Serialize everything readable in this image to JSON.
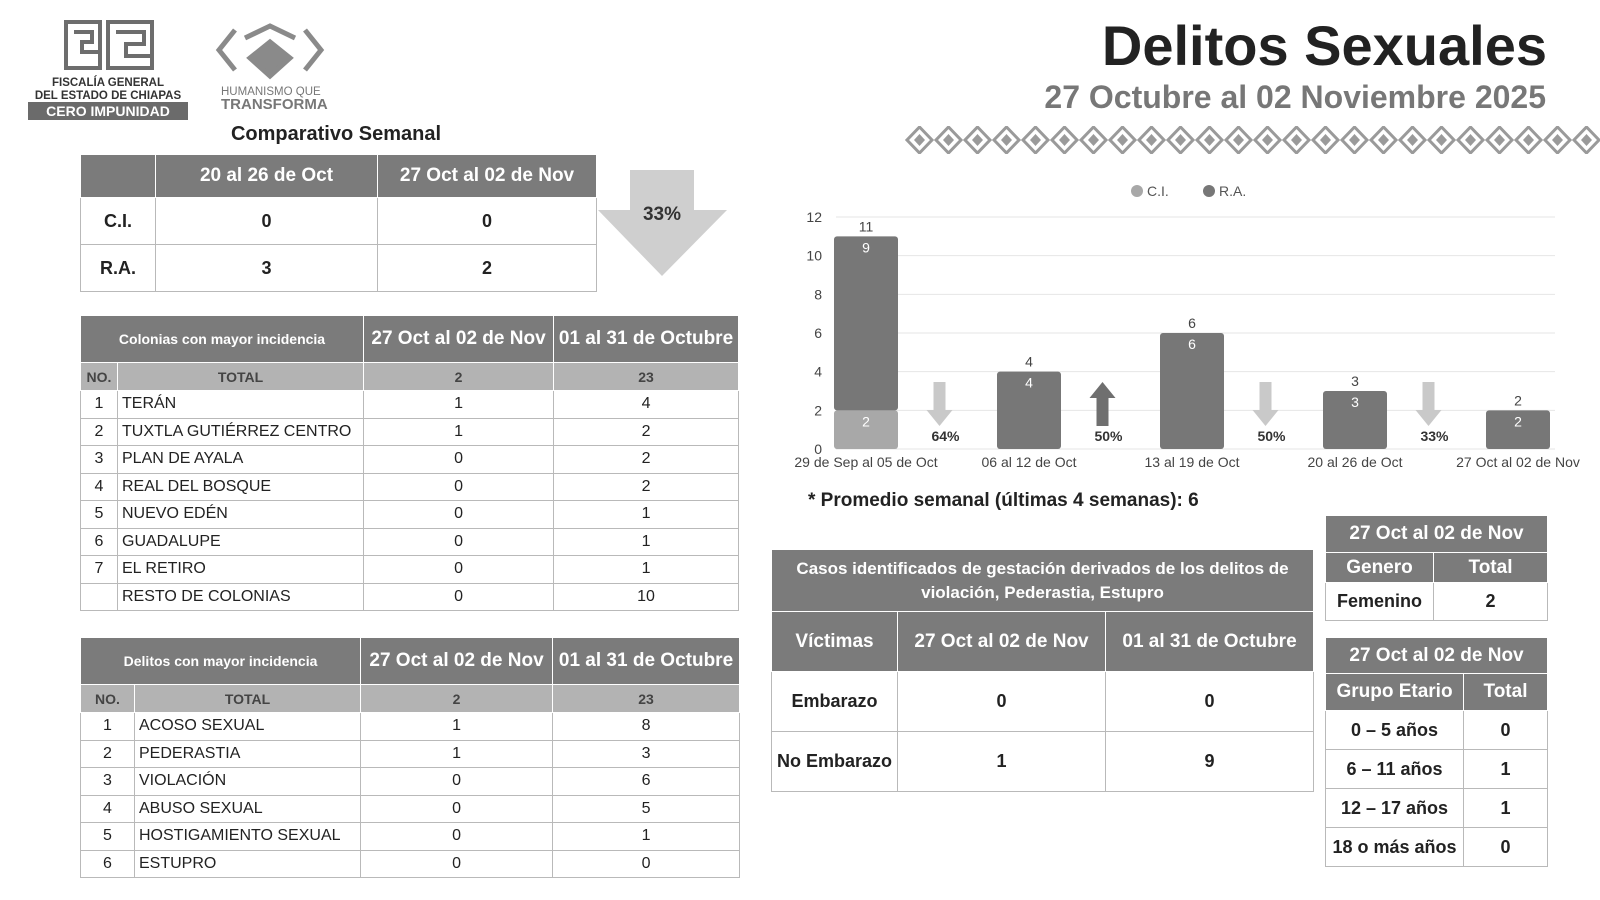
{
  "header": {
    "org_lines": [
      "FISCALÍA GENERAL",
      "DEL ESTADO DE CHIAPAS",
      "CERO IMPUNIDAD"
    ],
    "slogan": [
      "HUMANISMO QUE",
      "TRANSFORMA"
    ],
    "title": "Delitos Sexuales",
    "subtitle": "27 Octubre al 02 Noviembre 2025"
  },
  "weekly": {
    "title": "Comparativo Semanal",
    "columns": [
      "20 al 26 de Oct",
      "27 Oct al  02 de Nov"
    ],
    "rows": [
      [
        "C.I.",
        0,
        0
      ],
      [
        "R.A.",
        3,
        2
      ]
    ],
    "change": "33%"
  },
  "colonias": {
    "columns": [
      "Colonias con mayor incidencia",
      "27 Oct al  02 de Nov",
      "01 al 31 de Octubre"
    ],
    "total": [
      "NO.",
      "TOTAL",
      2,
      23
    ],
    "rows": [
      [
        1,
        "TERÁN",
        1,
        4
      ],
      [
        2,
        "TUXTLA GUTIÉRREZ CENTRO",
        1,
        2
      ],
      [
        3,
        "PLAN DE AYALA",
        0,
        2
      ],
      [
        4,
        "REAL DEL BOSQUE",
        0,
        2
      ],
      [
        5,
        "NUEVO EDÉN",
        0,
        1
      ],
      [
        6,
        "GUADALUPE",
        0,
        1
      ],
      [
        7,
        "EL RETIRO",
        0,
        1
      ],
      [
        "RESTO DE COLONIAS",
        0,
        10
      ]
    ]
  },
  "delitos": {
    "columns": [
      "Delitos con mayor incidencia",
      "27 Oct al  02 de Nov",
      "01 al 31 de Octubre"
    ],
    "total": [
      "NO.",
      "TOTAL",
      2,
      23
    ],
    "rows": [
      [
        1,
        "ACOSO SEXUAL",
        1,
        8
      ],
      [
        2,
        "PEDERASTIA",
        1,
        3
      ],
      [
        3,
        "VIOLACIÓN",
        0,
        6
      ],
      [
        4,
        "ABUSO SEXUAL",
        0,
        5
      ],
      [
        5,
        "HOSTIGAMIENTO SEXUAL",
        0,
        1
      ],
      [
        6,
        "ESTUPRO",
        0,
        0
      ]
    ]
  },
  "chart_data": {
    "type": "bar",
    "stacked": true,
    "categories": [
      "29 de Sep al 05 de Oct",
      "06 al 12 de Oct",
      "13 al 19 de Oct",
      "20 al 26 de Oct",
      "27 Oct al 02 de Nov"
    ],
    "series": [
      {
        "name": "C.I.",
        "color": "#a8a8a8",
        "values": [
          2,
          0,
          0,
          0,
          0
        ]
      },
      {
        "name": "R.A.",
        "color": "#777777",
        "values": [
          9,
          4,
          6,
          3,
          2
        ]
      }
    ],
    "totals": [
      11,
      4,
      6,
      3,
      2
    ],
    "changes": [
      {
        "label": "64%",
        "direction": "down"
      },
      {
        "label": "50%",
        "direction": "up"
      },
      {
        "label": "50%",
        "direction": "down"
      },
      {
        "label": "33%",
        "direction": "down"
      }
    ],
    "ylim": [
      0,
      12
    ],
    "yticks": [
      0,
      2,
      4,
      6,
      8,
      10,
      12
    ],
    "grid": true,
    "legend": "top"
  },
  "note": "* Promedio semanal (últimas 4 semanas): 6",
  "embarazo": {
    "title": "Casos identificados de gestación derivados de los delitos de violación, Pederastia, Estupro",
    "columns": [
      "Víctimas",
      "27 Oct al  02 de Nov",
      "01 al 31 de Octubre"
    ],
    "rows": [
      [
        "Embarazo",
        0,
        0
      ],
      [
        "No Embarazo",
        1,
        9
      ]
    ]
  },
  "genero": {
    "period": "27 Oct al 02 de Nov",
    "columns": [
      "Genero",
      "Total"
    ],
    "rows": [
      [
        "Femenino",
        2
      ]
    ]
  },
  "edad": {
    "period": "27 Oct al 02 de Nov",
    "columns": [
      "Grupo Etario",
      "Total"
    ],
    "rows": [
      [
        "0 – 5 años",
        0
      ],
      [
        "6 – 11 años",
        1
      ],
      [
        "12 – 17 años",
        1
      ],
      [
        "18 o más años",
        0
      ]
    ]
  }
}
